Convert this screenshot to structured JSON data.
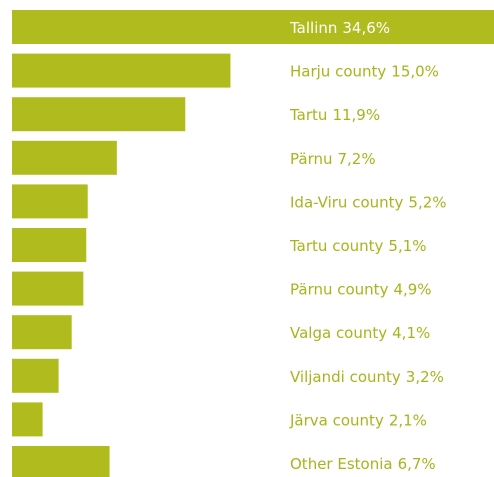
{
  "chart_data": {
    "type": "bar",
    "orientation": "horizontal",
    "categories": [
      "Tallinn",
      "Harju county",
      "Tartu",
      "Pärnu",
      "Ida-Viru county",
      "Tartu county",
      "Pärnu county",
      "Valga county",
      "Viljandi county",
      "Järva county",
      "Other Estonia"
    ],
    "values": [
      34.6,
      15.0,
      11.9,
      7.2,
      5.2,
      5.1,
      4.9,
      4.1,
      3.2,
      2.1,
      6.7
    ],
    "value_labels": [
      "34,6%",
      "15,0%",
      "11,9%",
      "7,2%",
      "5,2%",
      "5,1%",
      "4,9%",
      "4,1%",
      "3,2%",
      "2,1%",
      "6,7%"
    ],
    "color": "#b0bc1e",
    "xlim": [
      0,
      33.1
    ]
  }
}
